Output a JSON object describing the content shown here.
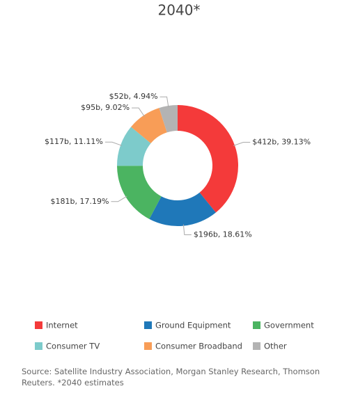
{
  "chart_data": {
    "type": "donut",
    "title": "2040*",
    "categories": [
      "Internet",
      "Ground Equipment",
      "Government",
      "Consumer TV",
      "Consumer Broadband",
      "Other"
    ],
    "values": [
      412,
      196,
      181,
      117,
      95,
      52
    ],
    "value_labels": [
      "$412b, 39.13%",
      "$196b, 18.61%",
      "$181b, 17.19%",
      "$117b, 11.11%",
      "$95b, 9.02%",
      "$52b, 4.94%"
    ],
    "colors": [
      "#f43a3a",
      "#1f78b9",
      "#4bb461",
      "#7dcbcb",
      "#f89d57",
      "#b3b3b3"
    ],
    "source": "Source: Satellite Industry Association, Morgan Stanley Research, Thomson Reuters. *2040 estimates"
  }
}
